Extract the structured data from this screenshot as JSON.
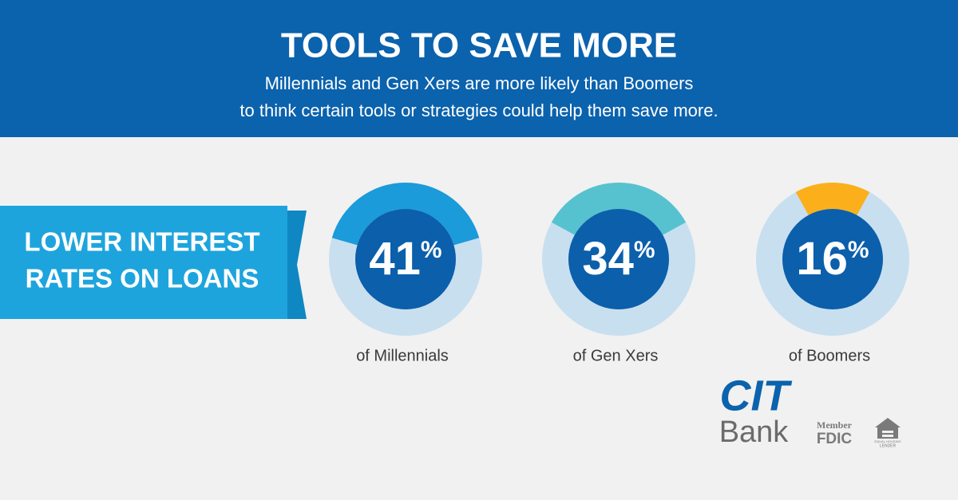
{
  "header": {
    "title": "TOOLS TO SAVE MORE",
    "subtitle": [
      "Millennials and Gen Xers are more likely than Boomers",
      "to think certain tools or strategies  could help them save more."
    ]
  },
  "chart_data": {
    "type": "donut",
    "label": [
      "LOWER INTEREST",
      "RATES ON LOANS"
    ],
    "categories": [
      "of Millennials",
      "of Gen Xers",
      "of Boomers"
    ],
    "values": [
      41,
      34,
      16
    ],
    "value_labels": [
      "41%",
      "34%",
      "16%"
    ],
    "colors": [
      "#1b9bd9",
      "#56c2cf",
      "#fbb01b"
    ],
    "track_color": "#c8dff0",
    "center_color": "#0b5fab"
  },
  "footer": {
    "brand": "CIT",
    "brand_sub": "Bank",
    "member": "Member",
    "fdic": "FDIC",
    "housing": [
      "EQUAL HOUSING",
      "LENDER"
    ]
  }
}
